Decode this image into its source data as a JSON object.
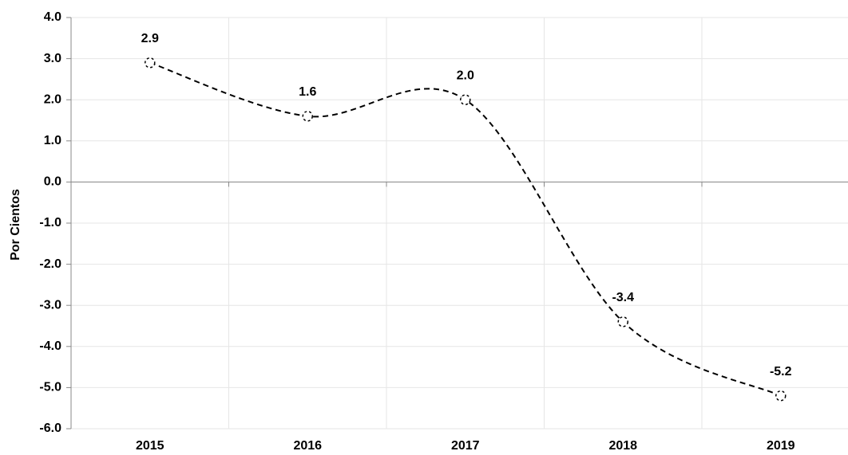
{
  "chart_data": {
    "type": "line",
    "y_label": "Por Cientos",
    "categories": [
      "2015",
      "2016",
      "2017",
      "2018",
      "2019"
    ],
    "series": [
      {
        "name": "Por Cientos",
        "color": "#000000",
        "values": [
          2.9,
          1.6,
          2.0,
          -3.4,
          -5.2
        ],
        "value_labels": [
          "2.9",
          "1.6",
          "2.0",
          "-3.4",
          "-5.2"
        ]
      }
    ],
    "ylim": [
      -6,
      4
    ],
    "yticks": [
      {
        "value": 4,
        "label": "4.0"
      },
      {
        "value": 3,
        "label": "3.0"
      },
      {
        "value": 2,
        "label": "2.0"
      },
      {
        "value": 1,
        "label": "1.0"
      },
      {
        "value": 0,
        "label": "0.0"
      },
      {
        "value": -1,
        "label": "-1.0"
      },
      {
        "value": -2,
        "label": "-2.0"
      },
      {
        "value": -3,
        "label": "-3.0"
      },
      {
        "value": -4,
        "label": "-4.0"
      },
      {
        "value": -5,
        "label": "-5.0"
      },
      {
        "value": -6,
        "label": "-6.0"
      }
    ],
    "grid": true,
    "line_style": "dashed",
    "smooth": true
  }
}
